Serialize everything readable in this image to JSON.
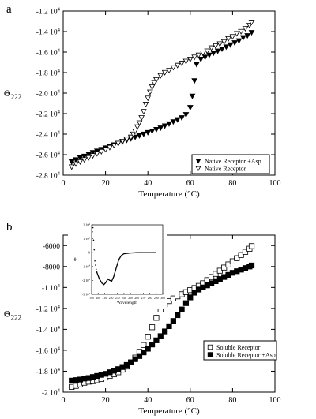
{
  "chart_data": [
    {
      "panel_label": "a",
      "type": "scatter",
      "xlabel": "Temperature (°C)",
      "ylabel": "Θ222",
      "xlim": [
        0,
        100
      ],
      "ylim": [
        -28000,
        -12000
      ],
      "x_ticks": [
        0,
        20,
        40,
        60,
        80,
        100
      ],
      "x_tick_labels": [
        "0",
        "20",
        "40",
        "60",
        "80",
        "100"
      ],
      "y_ticks": [
        -28000,
        -26000,
        -24000,
        -22000,
        -20000,
        -18000,
        -16000,
        -14000,
        -12000
      ],
      "y_tick_labels": [
        "-2.8 10⁴",
        "-2.6 10⁴",
        "-2.4 10⁴",
        "-2.2 10⁴",
        "-2.0 10⁴",
        "-1.8 10⁴",
        "-1.6 10⁴",
        "-1.4 10⁴",
        "-1.2 10⁴"
      ],
      "grid": false,
      "legend_position": "lower-right",
      "series": [
        {
          "name": "Native Receptor +Asp",
          "marker": "filled-down-triangle",
          "points": [
            [
              4,
              -26700
            ],
            [
              6,
              -26500
            ],
            [
              8,
              -26300
            ],
            [
              10,
              -26150
            ],
            [
              12,
              -25950
            ],
            [
              14,
              -25800
            ],
            [
              16,
              -25650
            ],
            [
              18,
              -25500
            ],
            [
              20,
              -25350
            ],
            [
              22,
              -25200
            ],
            [
              24,
              -25050
            ],
            [
              26,
              -24900
            ],
            [
              28,
              -24750
            ],
            [
              30,
              -24600
            ],
            [
              32,
              -24450
            ],
            [
              34,
              -24300
            ],
            [
              36,
              -24150
            ],
            [
              38,
              -24000
            ],
            [
              40,
              -23850
            ],
            [
              42,
              -23700
            ],
            [
              44,
              -23550
            ],
            [
              46,
              -23400
            ],
            [
              48,
              -23200
            ],
            [
              50,
              -23000
            ],
            [
              52,
              -22800
            ],
            [
              54,
              -22600
            ],
            [
              56,
              -22400
            ],
            [
              58,
              -22100
            ],
            [
              60,
              -21400
            ],
            [
              61,
              -20300
            ],
            [
              62,
              -18800
            ],
            [
              63,
              -17200
            ],
            [
              65,
              -16700
            ],
            [
              67,
              -16500
            ],
            [
              69,
              -16300
            ],
            [
              71,
              -16100
            ],
            [
              73,
              -15900
            ],
            [
              75,
              -15700
            ],
            [
              77,
              -15500
            ],
            [
              79,
              -15300
            ],
            [
              81,
              -15100
            ],
            [
              83,
              -14900
            ],
            [
              85,
              -14600
            ],
            [
              87,
              -14400
            ],
            [
              89,
              -14100
            ]
          ]
        },
        {
          "name": "Native Receptor",
          "marker": "open-down-triangle",
          "points": [
            [
              4,
              -27200
            ],
            [
              6,
              -26900
            ],
            [
              8,
              -26700
            ],
            [
              10,
              -26500
            ],
            [
              12,
              -26300
            ],
            [
              14,
              -26100
            ],
            [
              16,
              -25900
            ],
            [
              18,
              -25700
            ],
            [
              20,
              -25500
            ],
            [
              22,
              -25300
            ],
            [
              24,
              -25100
            ],
            [
              26,
              -24900
            ],
            [
              28,
              -24700
            ],
            [
              30,
              -24500
            ],
            [
              32,
              -24300
            ],
            [
              33,
              -24000
            ],
            [
              34,
              -23700
            ],
            [
              35,
              -23300
            ],
            [
              36,
              -22900
            ],
            [
              37,
              -22400
            ],
            [
              38,
              -21800
            ],
            [
              39,
              -21100
            ],
            [
              40,
              -20500
            ],
            [
              41,
              -19900
            ],
            [
              42,
              -19400
            ],
            [
              43,
              -19000
            ],
            [
              44,
              -18700
            ],
            [
              46,
              -18300
            ],
            [
              48,
              -18000
            ],
            [
              50,
              -17800
            ],
            [
              52,
              -17500
            ],
            [
              54,
              -17300
            ],
            [
              56,
              -17100
            ],
            [
              58,
              -16900
            ],
            [
              60,
              -16700
            ],
            [
              62,
              -16500
            ],
            [
              64,
              -16300
            ],
            [
              66,
              -16100
            ],
            [
              68,
              -15900
            ],
            [
              70,
              -15600
            ],
            [
              72,
              -15400
            ],
            [
              74,
              -15200
            ],
            [
              76,
              -15000
            ],
            [
              78,
              -14700
            ],
            [
              80,
              -14500
            ],
            [
              82,
              -14200
            ],
            [
              84,
              -14000
            ],
            [
              86,
              -13700
            ],
            [
              88,
              -13400
            ],
            [
              89,
              -13100
            ]
          ]
        }
      ]
    },
    {
      "panel_label": "b",
      "type": "scatter",
      "xlabel": "Temperature (°C)",
      "ylabel": "Θ222",
      "xlim": [
        0,
        100
      ],
      "ylim": [
        -20000,
        -5000
      ],
      "x_ticks": [
        0,
        20,
        40,
        60,
        80,
        100
      ],
      "x_tick_labels": [
        "0",
        "20",
        "40",
        "60",
        "80",
        "100"
      ],
      "y_ticks": [
        -20000,
        -18000,
        -16000,
        -14000,
        -12000,
        -10000,
        -8000,
        -6000
      ],
      "y_tick_labels": [
        "-2 10⁴",
        "-1.8 10⁴",
        "-1.6 10⁴",
        "-1.4 10⁴",
        "-1.2 10⁴",
        "-1 10⁴",
        "-8000",
        "-6000"
      ],
      "grid": false,
      "legend_position": "lower-right",
      "series": [
        {
          "name": "Soluble Receptor",
          "marker": "open-square",
          "points": [
            [
              4,
              -19500
            ],
            [
              6,
              -19400
            ],
            [
              8,
              -19250
            ],
            [
              10,
              -19100
            ],
            [
              12,
              -19000
            ],
            [
              14,
              -18950
            ],
            [
              16,
              -18850
            ],
            [
              18,
              -18750
            ],
            [
              20,
              -18600
            ],
            [
              22,
              -18450
            ],
            [
              24,
              -18300
            ],
            [
              26,
              -18100
            ],
            [
              28,
              -17850
            ],
            [
              30,
              -17550
            ],
            [
              32,
              -17150
            ],
            [
              34,
              -16700
            ],
            [
              36,
              -16150
            ],
            [
              38,
              -15500
            ],
            [
              40,
              -14700
            ],
            [
              42,
              -13800
            ],
            [
              44,
              -12900
            ],
            [
              46,
              -12100
            ],
            [
              48,
              -11600
            ],
            [
              50,
              -11300
            ],
            [
              52,
              -11050
            ],
            [
              54,
              -10850
            ],
            [
              56,
              -10650
            ],
            [
              58,
              -10450
            ],
            [
              60,
              -10250
            ],
            [
              62,
              -10050
            ],
            [
              64,
              -9850
            ],
            [
              66,
              -9600
            ],
            [
              68,
              -9300
            ],
            [
              70,
              -9000
            ],
            [
              72,
              -8700
            ],
            [
              74,
              -8400
            ],
            [
              76,
              -8100
            ],
            [
              78,
              -7800
            ],
            [
              80,
              -7500
            ],
            [
              82,
              -7200
            ],
            [
              84,
              -6900
            ],
            [
              86,
              -6600
            ],
            [
              88,
              -6300
            ],
            [
              89,
              -6050
            ]
          ]
        },
        {
          "name": "Soluble Receptor +Asp",
          "marker": "filled-square",
          "points": [
            [
              4,
              -18900
            ],
            [
              6,
              -18850
            ],
            [
              8,
              -18800
            ],
            [
              10,
              -18700
            ],
            [
              12,
              -18650
            ],
            [
              14,
              -18550
            ],
            [
              16,
              -18450
            ],
            [
              18,
              -18350
            ],
            [
              20,
              -18250
            ],
            [
              22,
              -18100
            ],
            [
              24,
              -17950
            ],
            [
              26,
              -17800
            ],
            [
              28,
              -17600
            ],
            [
              30,
              -17400
            ],
            [
              32,
              -17150
            ],
            [
              34,
              -16850
            ],
            [
              36,
              -16550
            ],
            [
              38,
              -16200
            ],
            [
              40,
              -15850
            ],
            [
              42,
              -15450
            ],
            [
              44,
              -15050
            ],
            [
              46,
              -14650
            ],
            [
              48,
              -14200
            ],
            [
              50,
              -13700
            ],
            [
              52,
              -13200
            ],
            [
              54,
              -12650
            ],
            [
              56,
              -12100
            ],
            [
              58,
              -11500
            ],
            [
              60,
              -10950
            ],
            [
              62,
              -10500
            ],
            [
              64,
              -10200
            ],
            [
              66,
              -10000
            ],
            [
              68,
              -9800
            ],
            [
              70,
              -9600
            ],
            [
              72,
              -9400
            ],
            [
              74,
              -9200
            ],
            [
              76,
              -9000
            ],
            [
              78,
              -8800
            ],
            [
              80,
              -8600
            ],
            [
              82,
              -8450
            ],
            [
              84,
              -8300
            ],
            [
              86,
              -8150
            ],
            [
              88,
              -8000
            ],
            [
              89,
              -7900
            ]
          ]
        }
      ],
      "inset": {
        "type": "line",
        "xlabel": "Wavelength",
        "ylabel": "θ",
        "xlim": [
          190,
          300
        ],
        "ylim": [
          -30000,
          20000
        ],
        "x_tick_labels": [
          "190",
          "200",
          "210",
          "220",
          "230",
          "240",
          "250",
          "260",
          "270",
          "280",
          "290",
          "300"
        ],
        "y_tick_labels": [
          "2 10⁴",
          "1 10⁴",
          "0",
          "-1 10⁴",
          "-2 10⁴",
          "-3 10⁴"
        ],
        "dotted_points": [
          [
            191,
            15000
          ],
          [
            192,
            18000
          ],
          [
            193,
            9000
          ],
          [
            194,
            2000
          ],
          [
            195,
            -6000
          ],
          [
            196,
            -9000
          ],
          [
            197,
            -12000
          ],
          [
            198,
            -14000
          ]
        ],
        "curve": [
          [
            198,
            -14000
          ],
          [
            202,
            -19000
          ],
          [
            206,
            -22000
          ],
          [
            209,
            -23000
          ],
          [
            212,
            -21500
          ],
          [
            215,
            -19000
          ],
          [
            218,
            -20000
          ],
          [
            221,
            -20500
          ],
          [
            224,
            -17500
          ],
          [
            228,
            -11000
          ],
          [
            232,
            -5000
          ],
          [
            236,
            -2000
          ],
          [
            240,
            -800
          ],
          [
            250,
            -200
          ],
          [
            260,
            0
          ],
          [
            275,
            0
          ],
          [
            290,
            0
          ]
        ]
      }
    }
  ]
}
